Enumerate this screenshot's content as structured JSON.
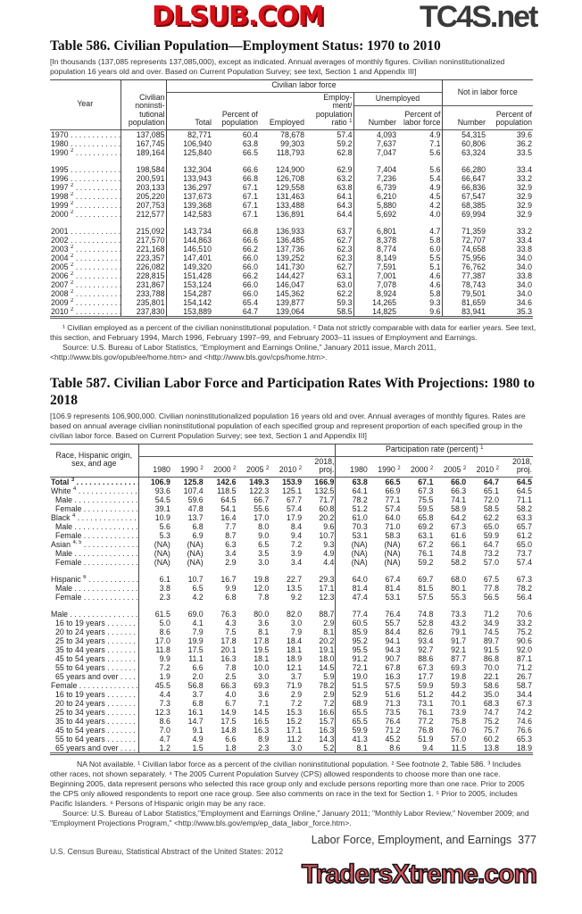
{
  "t586": {
    "title": "Table 586. Civilian Population—Employment Status: 1970 to 2010",
    "headnote": "[In thousands (137,085 represents 137,085,000), except as indicated. Annual averages of monthly figures. Civilian noninstitutionalized population 16 years old and over. Based on Current Population Survey; see text, Section 1 and Appendix III]",
    "h": {
      "year": "Year",
      "civpop": "Civilian noninsti-tutional population",
      "clf": "Civilian labor force",
      "nilf": "Not in labor force",
      "total": "Total",
      "pct_pop": "Percent of population",
      "employed": "Employed",
      "ratio": "Employ-ment/ population ratio",
      "ratio_sup": "1",
      "unemployed": "Unemployed",
      "number": "Number",
      "pct_lf": "Percent of labor force",
      "nilf_number": "Number",
      "nilf_pct": "Percent of population"
    },
    "groups": [
      [
        [
          "1970",
          "",
          "137,085",
          "82,771",
          "60.4",
          "78,678",
          "57.4",
          "4,093",
          "4.9",
          "54,315",
          "39.6"
        ],
        [
          "1980",
          "",
          "167,745",
          "106,940",
          "63.8",
          "99,303",
          "59.2",
          "7,637",
          "7.1",
          "60,806",
          "36.2"
        ],
        [
          "1990",
          "2",
          "189,164",
          "125,840",
          "66.5",
          "118,793",
          "62.8",
          "7,047",
          "5.6",
          "63,324",
          "33.5"
        ]
      ],
      [
        [
          "1995",
          "",
          "198,584",
          "132,304",
          "66.6",
          "124,900",
          "62.9",
          "7,404",
          "5.6",
          "66,280",
          "33.4"
        ],
        [
          "1996",
          "",
          "200,591",
          "133,943",
          "66.8",
          "126,708",
          "63.2",
          "7,236",
          "5.4",
          "66,647",
          "33.2"
        ],
        [
          "1997",
          "2",
          "203,133",
          "136,297",
          "67.1",
          "129,558",
          "63.8",
          "6,739",
          "4.9",
          "66,836",
          "32.9"
        ],
        [
          "1998",
          "2",
          "205,220",
          "137,673",
          "67.1",
          "131,463",
          "64.1",
          "6,210",
          "4.5",
          "67,547",
          "32.9"
        ],
        [
          "1999",
          "2",
          "207,753",
          "139,368",
          "67.1",
          "133,488",
          "64.3",
          "5,880",
          "4.2",
          "68,385",
          "32.9"
        ],
        [
          "2000",
          "2",
          "212,577",
          "142,583",
          "67.1",
          "136,891",
          "64.4",
          "5,692",
          "4.0",
          "69,994",
          "32.9"
        ]
      ],
      [
        [
          "2001",
          "",
          "215,092",
          "143,734",
          "66.8",
          "136,933",
          "63.7",
          "6,801",
          "4.7",
          "71,359",
          "33.2"
        ],
        [
          "2002",
          "",
          "217,570",
          "144,863",
          "66.6",
          "136,485",
          "62.7",
          "8,378",
          "5.8",
          "72,707",
          "33.4"
        ],
        [
          "2003",
          "2",
          "221,168",
          "146,510",
          "66.2",
          "137,736",
          "62.3",
          "8,774",
          "6.0",
          "74,658",
          "33.8"
        ],
        [
          "2004",
          "2",
          "223,357",
          "147,401",
          "66.0",
          "139,252",
          "62.3",
          "8,149",
          "5.5",
          "75,956",
          "34.0"
        ],
        [
          "2005",
          "2",
          "226,082",
          "149,320",
          "66.0",
          "141,730",
          "62.7",
          "7,591",
          "5.1",
          "76,762",
          "34.0"
        ],
        [
          "2006",
          "2",
          "228,815",
          "151,428",
          "66.2",
          "144,427",
          "63.1",
          "7,001",
          "4.6",
          "77,387",
          "33.8"
        ],
        [
          "2007",
          "2",
          "231,867",
          "153,124",
          "66.0",
          "146,047",
          "63.0",
          "7,078",
          "4.6",
          "78,743",
          "34.0"
        ],
        [
          "2008",
          "2",
          "233,788",
          "154,287",
          "66.0",
          "145,362",
          "62.2",
          "8,924",
          "5.8",
          "79,501",
          "34.0"
        ],
        [
          "2009",
          "2",
          "235,801",
          "154,142",
          "65.4",
          "139,877",
          "59.3",
          "14,265",
          "9.3",
          "81,659",
          "34.6"
        ],
        [
          "2010",
          "2",
          "237,830",
          "153,889",
          "64.7",
          "139,064",
          "58.5",
          "14,825",
          "9.6",
          "83,941",
          "35.3"
        ]
      ]
    ],
    "footnotes": "¹ Civilian employed as a percent of the civilian noninstitutional population. ² Data not strictly comparable with data for earlier years. See text, this section, and February 1994, March 1996, February 1997–99, and February 2003–11 issues of Employment and Earnings.",
    "source": "Source: U.S. Bureau of Labor Statistics, “Employment and Earnings Online,” January 2011 issue, March 2011, <http://www.bls.gov/opub/ee/home.htm> and <http://www.bls.gov/cps/home.htm>."
  },
  "t587": {
    "title": "Table 587. Civilian Labor Force and Participation Rates With Projections: 1980 to 2018",
    "headnote": "[106.9 represents 106,900,000. Civilian noninstitutionalized population 16 years old and over. Annual averages of monthly figures. Rates are based on annual average civilian noninstitutional population of each specified group and represent proportion of each specified group in the civilian labor force. Based on Current Population Survey; see text, Section 1 and Appendix III]",
    "h": {
      "label": "Race, Hispanic origin, sex, and age",
      "rate": "Participation rate (percent)",
      "rate_sup": "1"
    },
    "years": [
      [
        "1980",
        ""
      ],
      [
        "1990",
        "2"
      ],
      [
        "2000",
        "2"
      ],
      [
        "2005",
        "2"
      ],
      [
        "2010",
        "2"
      ],
      [
        "2018, proj.",
        ""
      ]
    ],
    "groups": [
      [
        [
          0,
          "Total",
          "3",
          "106.9",
          "125.8",
          "142.6",
          "149.3",
          "153.9",
          "166.9",
          "63.8",
          "66.5",
          "67.1",
          "66.0",
          "64.7",
          "64.5"
        ],
        [
          0,
          "White",
          "4",
          "93.6",
          "107.4",
          "118.5",
          "122.3",
          "125.1",
          "132.5",
          "64.1",
          "66.9",
          "67.3",
          "66.3",
          "65.1",
          "64.5"
        ],
        [
          1,
          "Male",
          "",
          "54.5",
          "59.6",
          "64.5",
          "66.7",
          "67.7",
          "71.7",
          "78.2",
          "77.1",
          "75.5",
          "74.1",
          "72.0",
          "71.1"
        ],
        [
          1,
          "Female",
          "",
          "39.1",
          "47.8",
          "54.1",
          "55.6",
          "57.4",
          "60.8",
          "51.2",
          "57.4",
          "59.5",
          "58.9",
          "58.5",
          "58.2"
        ],
        [
          0,
          "Black",
          "4",
          "10.9",
          "13.7",
          "16.4",
          "17.0",
          "17.9",
          "20.2",
          "61.0",
          "64.0",
          "65.8",
          "64.2",
          "62.2",
          "63.3"
        ],
        [
          1,
          "Male",
          "",
          "5.6",
          "6.8",
          "7.7",
          "8.0",
          "8.4",
          "9.6",
          "70.3",
          "71.0",
          "69.2",
          "67.3",
          "65.0",
          "65.7"
        ],
        [
          1,
          "Female",
          "",
          "5.3",
          "6.9",
          "8.7",
          "9.0",
          "9.4",
          "10.7",
          "53.1",
          "58.3",
          "63.1",
          "61.6",
          "59.9",
          "61.2"
        ],
        [
          0,
          "Asian",
          "4, 5",
          "(NA)",
          "(NA)",
          "6.3",
          "6.5",
          "7.2",
          "9.3",
          "(NA)",
          "(NA)",
          "67.2",
          "66.1",
          "64.7",
          "65.0"
        ],
        [
          1,
          "Male",
          "",
          "(NA)",
          "(NA)",
          "3.4",
          "3.5",
          "3.9",
          "4.9",
          "(NA)",
          "(NA)",
          "76.1",
          "74.8",
          "73.2",
          "73.7"
        ],
        [
          1,
          "Female",
          "",
          "(NA)",
          "(NA)",
          "2.9",
          "3.0",
          "3.4",
          "4.4",
          "(NA)",
          "(NA)",
          "59.2",
          "58.2",
          "57.0",
          "57.4"
        ]
      ],
      [
        [
          0,
          "Hispanic",
          "6",
          "6.1",
          "10.7",
          "16.7",
          "19.8",
          "22.7",
          "29.3",
          "64.0",
          "67.4",
          "69.7",
          "68.0",
          "67.5",
          "67.3"
        ],
        [
          1,
          "Male",
          "",
          "3.8",
          "6.5",
          "9.9",
          "12.0",
          "13.5",
          "17.1",
          "81.4",
          "81.4",
          "81.5",
          "80.1",
          "77.8",
          "78.2"
        ],
        [
          1,
          "Female",
          "",
          "2.3",
          "4.2",
          "6.8",
          "7.8",
          "9.2",
          "12.3",
          "47.4",
          "53.1",
          "57.5",
          "55.3",
          "56.5",
          "56.4"
        ]
      ],
      [
        [
          0,
          "Male",
          "",
          "61.5",
          "69.0",
          "76.3",
          "80.0",
          "82.0",
          "88.7",
          "77.4",
          "76.4",
          "74.8",
          "73.3",
          "71.2",
          "70.6"
        ],
        [
          1,
          "16 to 19 years",
          "",
          "5.0",
          "4.1",
          "4.3",
          "3.6",
          "3.0",
          "2.9",
          "60.5",
          "55.7",
          "52.8",
          "43.2",
          "34.9",
          "33.2"
        ],
        [
          1,
          "20 to 24 years",
          "",
          "8.6",
          "7.9",
          "7.5",
          "8.1",
          "7.9",
          "8.1",
          "85.9",
          "84.4",
          "82.6",
          "79.1",
          "74.5",
          "75.2"
        ],
        [
          1,
          "25 to 34 years",
          "",
          "17.0",
          "19.9",
          "17.8",
          "17.8",
          "18.4",
          "20.2",
          "95.2",
          "94.1",
          "93.4",
          "91.7",
          "89.7",
          "90.6"
        ],
        [
          1,
          "35 to 44 years",
          "",
          "11.8",
          "17.5",
          "20.1",
          "19.5",
          "18.1",
          "19.1",
          "95.5",
          "94.3",
          "92.7",
          "92.1",
          "91.5",
          "92.0"
        ],
        [
          1,
          "45 to 54 years",
          "",
          "9.9",
          "11.1",
          "16.3",
          "18.1",
          "18.9",
          "18.0",
          "91.2",
          "90.7",
          "88.6",
          "87.7",
          "86.8",
          "87.1"
        ],
        [
          1,
          "55 to 64 years",
          "",
          "7.2",
          "6.6",
          "7.8",
          "10.0",
          "12.1",
          "14.5",
          "72.1",
          "67.8",
          "67.3",
          "69.3",
          "70.0",
          "71.2"
        ],
        [
          1,
          "65 years and over",
          "",
          "1.9",
          "2.0",
          "2.5",
          "3.0",
          "3.7",
          "5.9",
          "19.0",
          "16.3",
          "17.7",
          "19.8",
          "22.1",
          "26.7"
        ],
        [
          0,
          "Female",
          "",
          "45.5",
          "56.8",
          "66.3",
          "69.3",
          "71.9",
          "78.2",
          "51.5",
          "57.5",
          "59.9",
          "59.3",
          "58.6",
          "58.7"
        ],
        [
          1,
          "16 to 19 years",
          "",
          "4.4",
          "3.7",
          "4.0",
          "3.6",
          "2.9",
          "2.9",
          "52.9",
          "51.6",
          "51.2",
          "44.2",
          "35.0",
          "34.4"
        ],
        [
          1,
          "20 to 24 years",
          "",
          "7.3",
          "6.8",
          "6.7",
          "7.1",
          "7.2",
          "7.2",
          "68.9",
          "71.3",
          "73.1",
          "70.1",
          "68.3",
          "67.3"
        ],
        [
          1,
          "25 to 34 years",
          "",
          "12.3",
          "16.1",
          "14.9",
          "14.5",
          "15.3",
          "16.6",
          "65.5",
          "73.5",
          "76.1",
          "73.9",
          "74.7",
          "74.2"
        ],
        [
          1,
          "35 to 44 years",
          "",
          "8.6",
          "14.7",
          "17.5",
          "16.5",
          "15.2",
          "15.7",
          "65.5",
          "76.4",
          "77.2",
          "75.8",
          "75.2",
          "74.6"
        ],
        [
          1,
          "45 to 54 years",
          "",
          "7.0",
          "9.1",
          "14.8",
          "16.3",
          "17.1",
          "16.3",
          "59.9",
          "71.2",
          "76.8",
          "76.0",
          "75.7",
          "76.6"
        ],
        [
          1,
          "55 to 64 years",
          "",
          "4.7",
          "4.9",
          "6.6",
          "8.9",
          "11.2",
          "14.3",
          "41.3",
          "45.2",
          "51.9",
          "57.0",
          "60.2",
          "65.3"
        ],
        [
          1,
          "65 years and over",
          "",
          "1.2",
          "1.5",
          "1.8",
          "2.3",
          "3.0",
          "5.2",
          "8.1",
          "8.6",
          "9.4",
          "11.5",
          "13.8",
          "18.9"
        ]
      ]
    ],
    "footnotes": "NA Not available. ¹ Civilian labor force as a percent of the civilian noninstitutional population. ² See footnote 2, Table 586. ³ Includes other races, not shown separately. ⁴ The 2005 Current Population Survey (CPS) allowed respondents to choose more than one race. Beginning 2005, data represent persons who selected this race group only and exclude persons reporting more than one race. Prior to 2005 the CPS only allowed respondents to report one race group. See also comments on race in the text for Section 1. ⁵ Prior to 2005, includes Pacific Islanders. ⁶ Persons of Hispanic origin may be any race.",
    "source": "Source: U.S. Bureau of Labor Statistics,\"Employment and Earnings Online,\" January 2011; \"Monthly Labor Review,\" November 2009; and \"Employment Projections Program,\" <http://www.bls.gov/emp/ep_data_labor_force.htm>."
  },
  "footer": {
    "section": "Labor Force, Employment, and Earnings",
    "page": "377",
    "publication": "U.S. Census Bureau, Statistical Abstract of the United States: 2012"
  },
  "watermarks": {
    "top": "TC4S.net",
    "middle": "DLSUB.COM",
    "bottom": "TradersXtreme.com"
  }
}
